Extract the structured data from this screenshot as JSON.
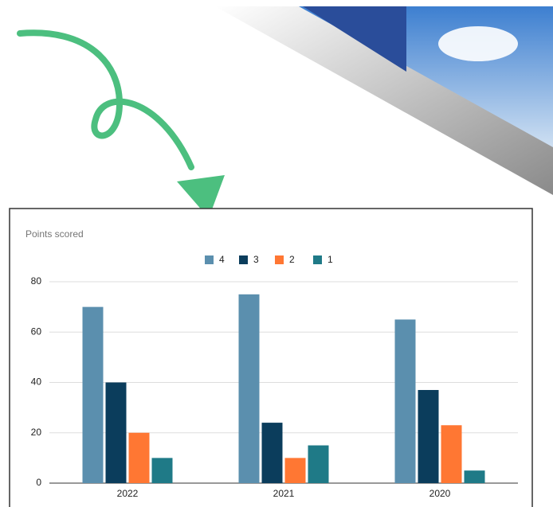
{
  "chart_data": {
    "type": "bar",
    "title": "Points scored",
    "categories": [
      "2022",
      "2021",
      "2020"
    ],
    "series": [
      {
        "name": "4",
        "color": "#5b8fae",
        "values": [
          70,
          75,
          65
        ]
      },
      {
        "name": "3",
        "color": "#0b3d5c",
        "values": [
          40,
          24,
          37
        ]
      },
      {
        "name": "2",
        "color": "#ff7733",
        "values": [
          20,
          10,
          23
        ]
      },
      {
        "name": "1",
        "color": "#1f7a87",
        "values": [
          10,
          15,
          5
        ]
      }
    ],
    "ylim": [
      0,
      80
    ],
    "yticks": [
      0,
      20,
      40,
      60,
      80
    ],
    "grid": true,
    "legend": "top"
  }
}
